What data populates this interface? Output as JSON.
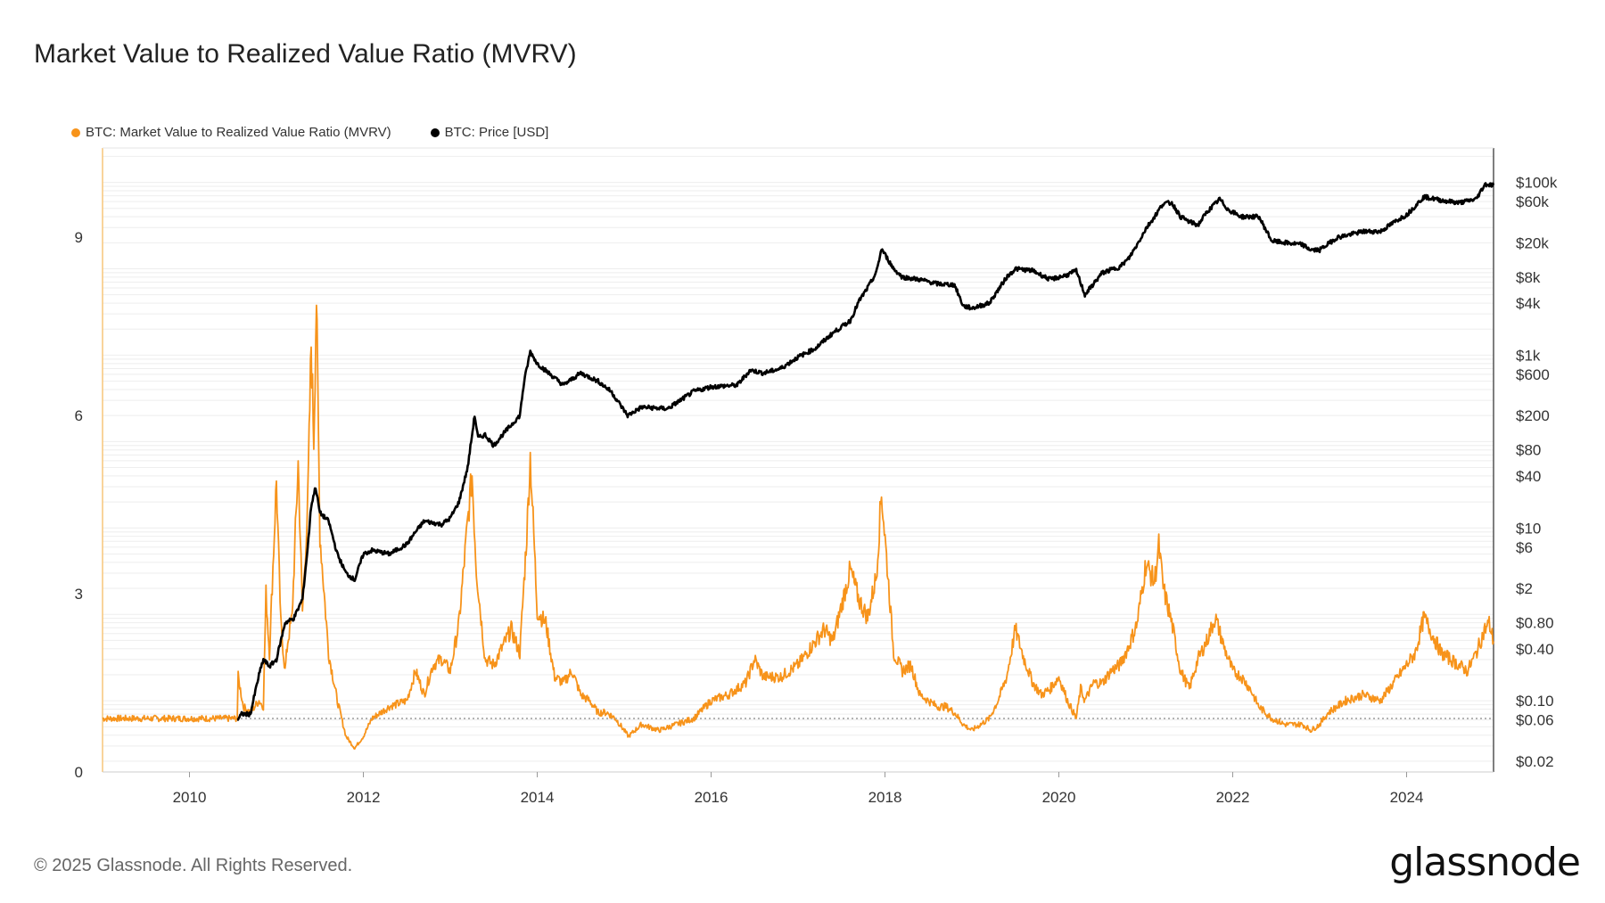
{
  "title": "Market Value to Realized Value Ratio (MVRV)",
  "legend": {
    "mvrv_label": "BTC: Market Value to Realized Value Ratio (MVRV)",
    "price_label": "BTC: Price [USD]"
  },
  "footer": {
    "copyright": "© 2025 Glassnode. All Rights Reserved.",
    "logo": "glassnode"
  },
  "colors": {
    "mvrv": "#f7931a",
    "price": "#000000",
    "grid": "#eeeeee",
    "axis": "#555555",
    "baseline": "#888888"
  },
  "chart_data": {
    "type": "line",
    "x_ticks": [
      "2010",
      "2012",
      "2014",
      "2016",
      "2018",
      "2020",
      "2022",
      "2024"
    ],
    "x_range": [
      2009.0,
      2025.0
    ],
    "left_axis": {
      "ticks": [
        0,
        3,
        6,
        9
      ],
      "range": [
        0,
        10.5
      ],
      "scale": "linear"
    },
    "right_axis": {
      "scale": "log",
      "ticks": [
        {
          "v": 100000,
          "label": "$100k"
        },
        {
          "v": 60000,
          "label": "$60k"
        },
        {
          "v": 20000,
          "label": "$20k"
        },
        {
          "v": 8000,
          "label": "$8k"
        },
        {
          "v": 4000,
          "label": "$4k"
        },
        {
          "v": 1000,
          "label": "$1k"
        },
        {
          "v": 600,
          "label": "$600"
        },
        {
          "v": 200,
          "label": "$200"
        },
        {
          "v": 80,
          "label": "$80"
        },
        {
          "v": 40,
          "label": "$40"
        },
        {
          "v": 10,
          "label": "$10"
        },
        {
          "v": 6,
          "label": "$6"
        },
        {
          "v": 2,
          "label": "$2"
        },
        {
          "v": 0.8,
          "label": "$0.80"
        },
        {
          "v": 0.4,
          "label": "$0.40"
        },
        {
          "v": 0.1,
          "label": "$0.10"
        },
        {
          "v": 0.06,
          "label": "$0.06"
        },
        {
          "v": 0.02,
          "label": "$0.02"
        }
      ],
      "range": [
        0.015,
        250000
      ]
    },
    "reference_line": 0.9,
    "series": [
      {
        "name": "BTC: Market Value to Realized Value Ratio (MVRV)",
        "axis": "left",
        "x": [
          2009.0,
          2010.55,
          2010.56,
          2010.62,
          2010.7,
          2010.8,
          2010.85,
          2010.88,
          2010.92,
          2011.0,
          2011.05,
          2011.1,
          2011.13,
          2011.18,
          2011.25,
          2011.3,
          2011.36,
          2011.4,
          2011.43,
          2011.46,
          2011.5,
          2011.55,
          2011.6,
          2011.7,
          2011.8,
          2011.9,
          2012.0,
          2012.1,
          2012.2,
          2012.3,
          2012.5,
          2012.6,
          2012.7,
          2012.8,
          2012.9,
          2013.0,
          2013.1,
          2013.2,
          2013.25,
          2013.3,
          2013.4,
          2013.5,
          2013.6,
          2013.7,
          2013.8,
          2013.88,
          2013.92,
          2014.0,
          2014.1,
          2014.2,
          2014.3,
          2014.4,
          2014.5,
          2014.6,
          2014.7,
          2014.8,
          2014.9,
          2015.05,
          2015.2,
          2015.4,
          2015.6,
          2015.8,
          2016.0,
          2016.2,
          2016.4,
          2016.5,
          2016.6,
          2016.8,
          2017.0,
          2017.1,
          2017.2,
          2017.3,
          2017.4,
          2017.5,
          2017.6,
          2017.7,
          2017.8,
          2017.9,
          2017.96,
          2018.05,
          2018.1,
          2018.2,
          2018.3,
          2018.4,
          2018.5,
          2018.6,
          2018.7,
          2018.8,
          2018.9,
          2019.0,
          2019.1,
          2019.2,
          2019.3,
          2019.4,
          2019.5,
          2019.6,
          2019.7,
          2019.8,
          2019.9,
          2020.0,
          2020.1,
          2020.2,
          2020.25,
          2020.3,
          2020.4,
          2020.5,
          2020.6,
          2020.7,
          2020.8,
          2020.9,
          2021.0,
          2021.1,
          2021.15,
          2021.2,
          2021.3,
          2021.4,
          2021.5,
          2021.6,
          2021.7,
          2021.8,
          2021.9,
          2022.0,
          2022.1,
          2022.2,
          2022.3,
          2022.45,
          2022.6,
          2022.8,
          2022.9,
          2023.0,
          2023.1,
          2023.3,
          2023.5,
          2023.7,
          2023.8,
          2023.9,
          2024.0,
          2024.1,
          2024.2,
          2024.3,
          2024.4,
          2024.5,
          2024.6,
          2024.7,
          2024.8,
          2024.9,
          2024.95,
          2025.0
        ],
        "values": [
          0.9,
          0.9,
          1.6,
          1.1,
          1.0,
          1.2,
          1.1,
          3.0,
          2.0,
          4.9,
          2.5,
          1.7,
          2.2,
          2.6,
          5.2,
          2.7,
          4.5,
          7.2,
          5.6,
          8.0,
          4.0,
          3.0,
          2.0,
          1.2,
          0.6,
          0.4,
          0.6,
          0.9,
          1.0,
          1.1,
          1.2,
          1.7,
          1.3,
          1.8,
          1.9,
          1.7,
          2.5,
          4.2,
          5.0,
          3.4,
          1.9,
          1.8,
          2.1,
          2.4,
          2.0,
          4.0,
          5.3,
          2.7,
          2.5,
          1.6,
          1.5,
          1.7,
          1.3,
          1.2,
          1.0,
          1.0,
          0.9,
          0.6,
          0.8,
          0.7,
          0.8,
          0.9,
          1.2,
          1.3,
          1.5,
          1.9,
          1.6,
          1.6,
          1.8,
          2.0,
          2.2,
          2.4,
          2.2,
          2.8,
          3.4,
          2.9,
          2.6,
          3.3,
          4.7,
          3.0,
          2.0,
          1.7,
          1.8,
          1.3,
          1.2,
          1.1,
          1.1,
          1.0,
          0.8,
          0.7,
          0.8,
          0.9,
          1.2,
          1.6,
          2.4,
          1.9,
          1.5,
          1.3,
          1.4,
          1.6,
          1.2,
          0.9,
          1.4,
          1.2,
          1.5,
          1.5,
          1.7,
          1.8,
          2.1,
          2.5,
          3.5,
          3.2,
          3.8,
          3.1,
          2.5,
          1.7,
          1.4,
          1.9,
          2.2,
          2.6,
          2.1,
          1.7,
          1.6,
          1.4,
          1.1,
          0.9,
          0.8,
          0.8,
          0.7,
          0.8,
          1.0,
          1.2,
          1.3,
          1.2,
          1.4,
          1.6,
          1.8,
          2.0,
          2.6,
          2.3,
          2.0,
          1.9,
          1.8,
          1.7,
          2.0,
          2.4,
          2.5,
          2.2
        ]
      },
      {
        "name": "BTC: Price [USD]",
        "axis": "right",
        "x": [
          2010.55,
          2010.6,
          2010.7,
          2010.8,
          2010.85,
          2010.92,
          2011.0,
          2011.1,
          2011.2,
          2011.3,
          2011.36,
          2011.4,
          2011.45,
          2011.5,
          2011.6,
          2011.7,
          2011.8,
          2011.9,
          2012.0,
          2012.1,
          2012.3,
          2012.5,
          2012.6,
          2012.7,
          2012.9,
          2013.0,
          2013.1,
          2013.2,
          2013.28,
          2013.32,
          2013.4,
          2013.5,
          2013.6,
          2013.8,
          2013.85,
          2013.92,
          2014.0,
          2014.15,
          2014.3,
          2014.5,
          2014.7,
          2014.85,
          2015.04,
          2015.2,
          2015.5,
          2015.8,
          2016.0,
          2016.3,
          2016.45,
          2016.6,
          2016.8,
          2017.0,
          2017.2,
          2017.4,
          2017.6,
          2017.7,
          2017.8,
          2017.9,
          2017.96,
          2018.1,
          2018.2,
          2018.4,
          2018.6,
          2018.8,
          2018.9,
          2019.0,
          2019.2,
          2019.4,
          2019.5,
          2019.7,
          2019.9,
          2020.1,
          2020.2,
          2020.3,
          2020.5,
          2020.7,
          2020.8,
          2020.9,
          2021.0,
          2021.1,
          2021.2,
          2021.3,
          2021.4,
          2021.5,
          2021.6,
          2021.7,
          2021.85,
          2021.95,
          2022.1,
          2022.3,
          2022.45,
          2022.6,
          2022.8,
          2022.9,
          2023.0,
          2023.2,
          2023.5,
          2023.7,
          2023.9,
          2024.0,
          2024.2,
          2024.4,
          2024.6,
          2024.8,
          2024.9,
          2025.0
        ],
        "values": [
          0.06,
          0.07,
          0.07,
          0.2,
          0.3,
          0.25,
          0.3,
          0.8,
          0.9,
          1.5,
          6,
          18,
          30,
          15,
          12,
          5,
          3,
          2.5,
          5,
          5.5,
          5,
          6.5,
          9,
          12,
          11,
          13,
          20,
          50,
          200,
          110,
          120,
          90,
          120,
          200,
          500,
          1100,
          800,
          600,
          450,
          620,
          500,
          380,
          200,
          250,
          240,
          380,
          430,
          450,
          670,
          620,
          700,
          950,
          1200,
          1800,
          2500,
          4200,
          6000,
          9000,
          17000,
          10000,
          8000,
          7500,
          6700,
          6500,
          3700,
          3500,
          4000,
          8000,
          10000,
          9500,
          7500,
          8500,
          9500,
          5000,
          9000,
          10500,
          13000,
          19000,
          29000,
          40000,
          57000,
          58000,
          40000,
          35000,
          32000,
          45000,
          64000,
          48000,
          40000,
          40000,
          21000,
          20000,
          19000,
          16500,
          16500,
          23000,
          27000,
          27000,
          37000,
          42000,
          68000,
          62000,
          58000,
          64000,
          95000,
          93000
        ]
      }
    ]
  }
}
